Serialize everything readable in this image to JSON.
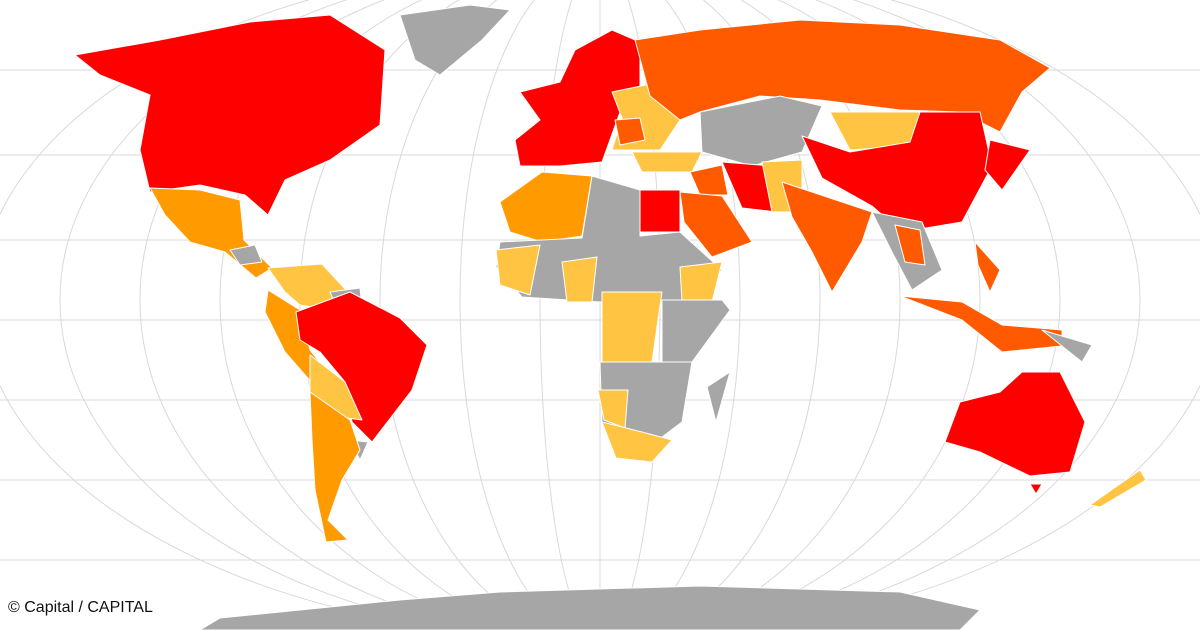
{
  "caption": "© Capital / CAPITAL",
  "colors": {
    "red": "#ff0000",
    "dark_orange": "#ff5a00",
    "orange": "#ff9a00",
    "light_orange": "#ffc441",
    "no_data": "#a6a6a6",
    "graticule": "#d9d9d9",
    "border": "#ffffff"
  }
}
